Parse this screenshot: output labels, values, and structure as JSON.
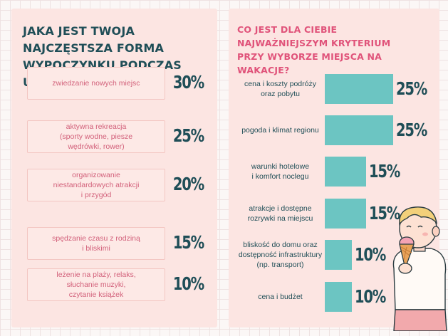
{
  "chart_data": [
    {
      "type": "table",
      "title": "JAKA JEST TWOJA NAJCZĘSTSZA FORMA WYPOCZYNKU PODCZAS URLOPU?",
      "categories": [
        "zwiedzanie nowych miejsc",
        "aktywna rekreacja\n(sporty wodne, piesze\nwędrówki, rower)",
        "organizowanie\nniestandardowych atrakcji\ni przygód",
        "spędzanie czasu z rodziną\ni bliskimi",
        "leżenie na plaży, relaks,\nsłuchanie muzyki,\nczytanie książek"
      ],
      "values": [
        30,
        25,
        20,
        15,
        10
      ],
      "value_labels": [
        "30%",
        "25%",
        "20%",
        "15%",
        "10%"
      ]
    },
    {
      "type": "bar",
      "title": "CO JEST DLA CIEBIE NAJWAŻNIEJSZYM KRYTERIUM PRZY WYBORZE MIEJSCA NA WAKACJE?",
      "categories": [
        "cena i koszty podróży\noraz pobytu",
        "pogoda i klimat regionu",
        "warunki hotelowe\ni komfort noclegu",
        "atrakcje i dostępne\nrozrywki na miejscu",
        "bliskość do domu oraz\ndostępność infrastruktury\n(np. transport)",
        "cena i budżet"
      ],
      "values": [
        25,
        25,
        15,
        15,
        10,
        10
      ],
      "value_labels": [
        "25%",
        "25%",
        "15%",
        "15%",
        "10%",
        "10%"
      ]
    }
  ],
  "colors": {
    "panel": "#fce5e2",
    "bar": "#6cc5c2",
    "heading_dark": "#1f4e57",
    "heading_pink": "#e0537a",
    "label_pink": "#d2607a"
  },
  "illustration": "child-eating-ice-cream"
}
